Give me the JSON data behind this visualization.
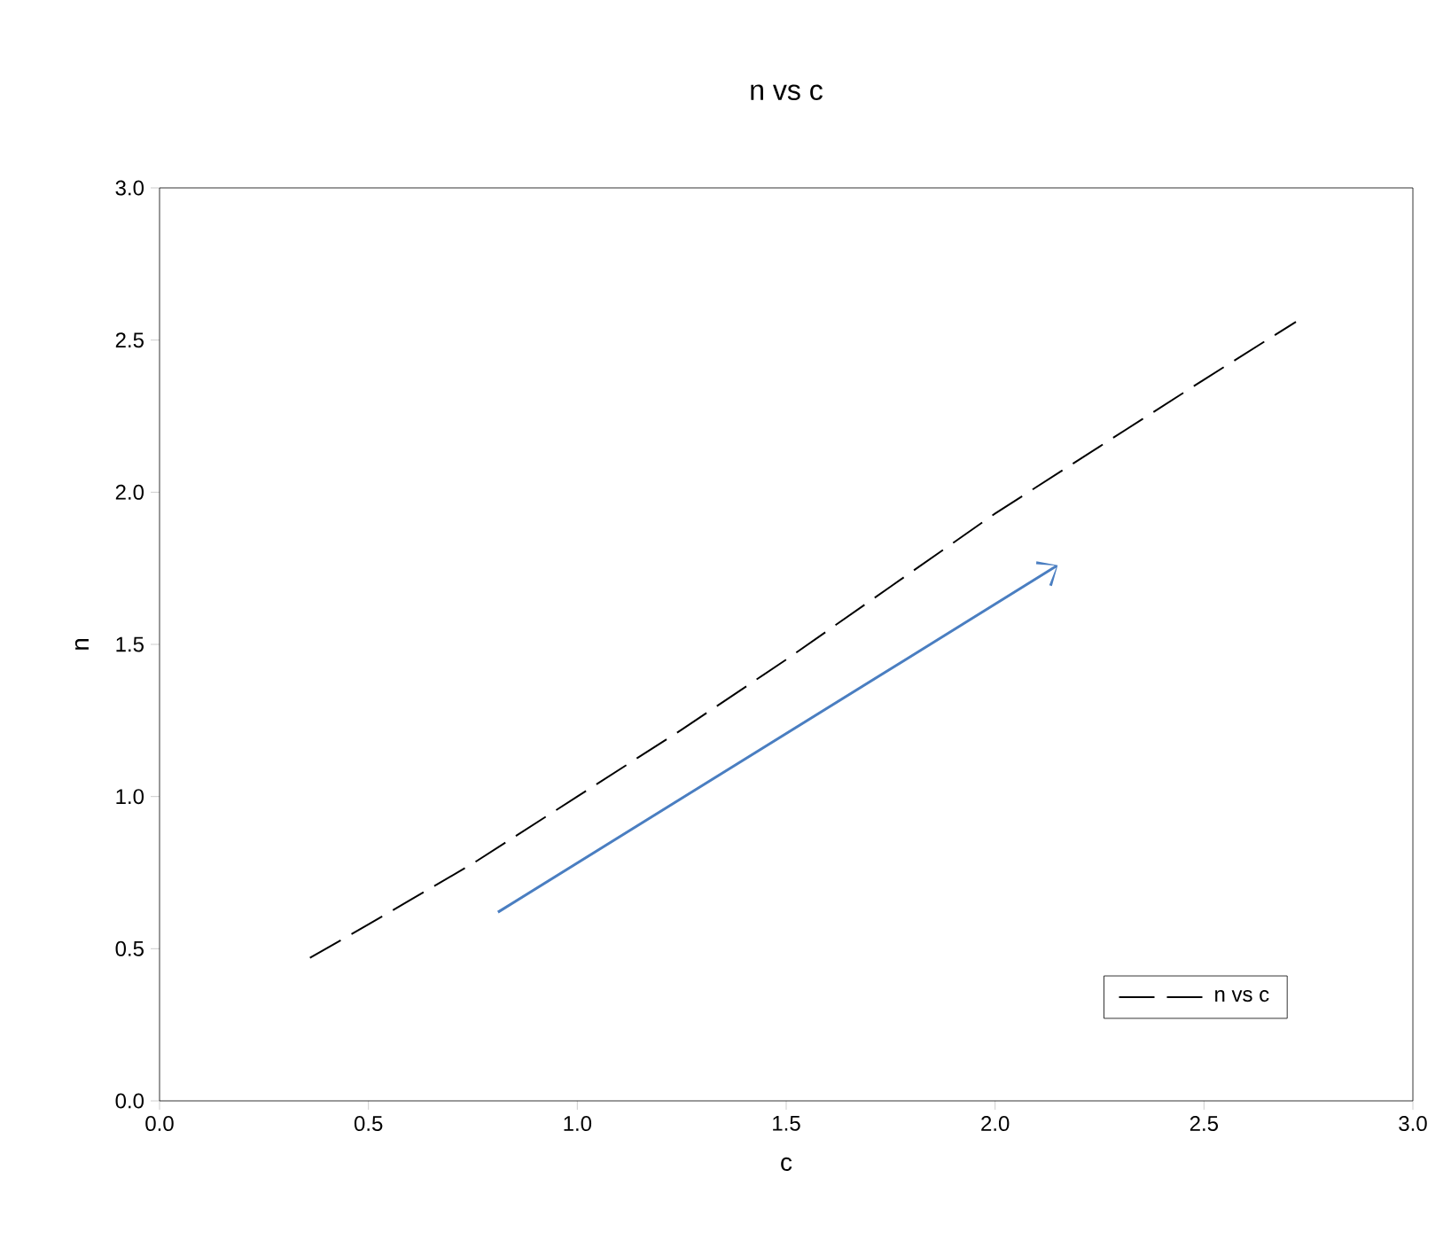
{
  "chart_data": {
    "type": "line",
    "title": "n vs c",
    "xlabel": "c",
    "ylabel": "n",
    "series": [
      {
        "name": "n vs c",
        "color": "#000000",
        "x": [
          0.36,
          0.5,
          0.75,
          1.0,
          1.25,
          1.5,
          1.75,
          2.0,
          2.25,
          2.5,
          2.72
        ],
        "values": [
          0.47,
          0.58,
          0.78,
          1.0,
          1.22,
          1.45,
          1.69,
          1.93,
          2.15,
          2.37,
          2.56
        ]
      }
    ],
    "xlim": [
      0,
      3
    ],
    "ylim": [
      0,
      3
    ],
    "xticks": [
      {
        "value": 0,
        "label": "0.0"
      },
      {
        "value": 0.5,
        "label": "0.5"
      },
      {
        "value": 1,
        "label": "1.0"
      },
      {
        "value": 1.5,
        "label": "1.5"
      },
      {
        "value": 2,
        "label": "2.0"
      },
      {
        "value": 2.5,
        "label": "2.5"
      },
      {
        "value": 3,
        "label": "3.0"
      }
    ],
    "yticks": [
      {
        "value": 0,
        "label": "0.0"
      },
      {
        "value": 0.5,
        "label": "0.5"
      },
      {
        "value": 1,
        "label": "1.0"
      },
      {
        "value": 1.5,
        "label": "1.5"
      },
      {
        "value": 2,
        "label": "2.0"
      },
      {
        "value": 2.5,
        "label": "2.5"
      },
      {
        "value": 3,
        "label": "3.0"
      }
    ],
    "legend": "bottom right",
    "grid": false,
    "line_style": "dashed",
    "marker": "none"
  }
}
